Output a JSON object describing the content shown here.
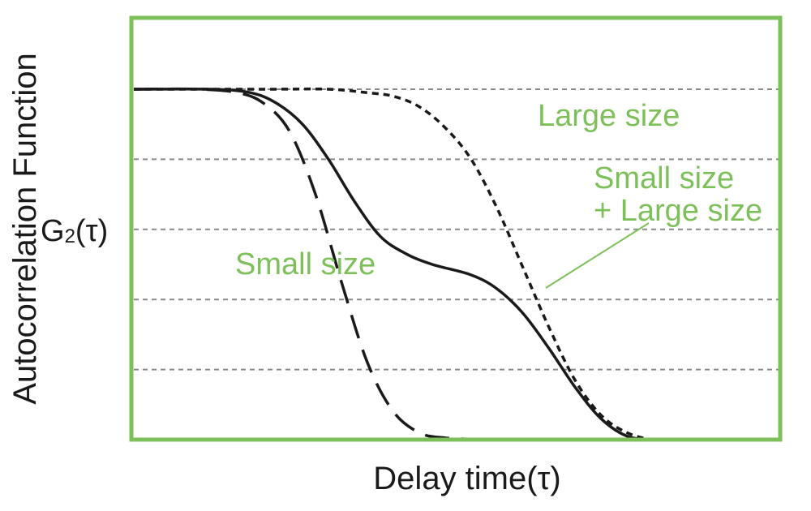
{
  "chart_data": {
    "type": "line",
    "title": "",
    "xlabel": "Delay time(τ)",
    "ylabel": "Autocorrelation Function",
    "ylabel_symbol": "G",
    "ylabel_symbol_sub": "2",
    "ylabel_symbol_arg": "(τ)",
    "xlim": [
      0,
      1
    ],
    "ylim": [
      0,
      1
    ],
    "grid": "horizontal dashed",
    "y_gridlines": [
      0.2,
      0.4,
      0.6,
      0.8,
      1.0
    ],
    "frame_color": "#7dc05a",
    "annotation_color": "#7dc05a",
    "curve_color": "#1a1a1a",
    "series": [
      {
        "name": "Small size",
        "style": "long-dash",
        "x": [
          0,
          0.1,
          0.16,
          0.2,
          0.24,
          0.28,
          0.32,
          0.36,
          0.4,
          0.44,
          0.48,
          0.56,
          0.6
        ],
        "y": [
          1.0,
          1.0,
          0.99,
          0.96,
          0.88,
          0.7,
          0.45,
          0.22,
          0.08,
          0.02,
          0.005,
          0.0,
          0.0
        ]
      },
      {
        "name": "Small size\n+ Large size",
        "style": "solid",
        "x": [
          0,
          0.12,
          0.18,
          0.22,
          0.26,
          0.3,
          0.34,
          0.38,
          0.42,
          0.46,
          0.52,
          0.56,
          0.6,
          0.64,
          0.68,
          0.72,
          0.76,
          0.8,
          0.84,
          0.88
        ],
        "y": [
          1.0,
          1.0,
          0.99,
          0.96,
          0.9,
          0.8,
          0.68,
          0.58,
          0.53,
          0.5,
          0.47,
          0.43,
          0.36,
          0.26,
          0.15,
          0.06,
          0.01,
          0.0,
          0.0,
          0.0
        ]
      },
      {
        "name": "Large size",
        "style": "short-dash",
        "x": [
          0,
          0.2,
          0.3,
          0.36,
          0.4,
          0.44,
          0.48,
          0.52,
          0.56,
          0.6,
          0.64,
          0.68,
          0.72,
          0.76,
          0.8,
          0.84,
          0.88
        ],
        "y": [
          1.0,
          1.0,
          1.0,
          0.99,
          0.98,
          0.95,
          0.89,
          0.8,
          0.66,
          0.49,
          0.32,
          0.17,
          0.07,
          0.02,
          0.0,
          0.0,
          0.0
        ]
      }
    ],
    "annotations": [
      {
        "text": "Large size",
        "target_series": "Large size"
      },
      {
        "text": "Small size",
        "target_series": "Small size"
      },
      {
        "text": "Small size",
        "text2": "+ Large size",
        "target_series": "Small size\n+ Large size"
      }
    ]
  }
}
